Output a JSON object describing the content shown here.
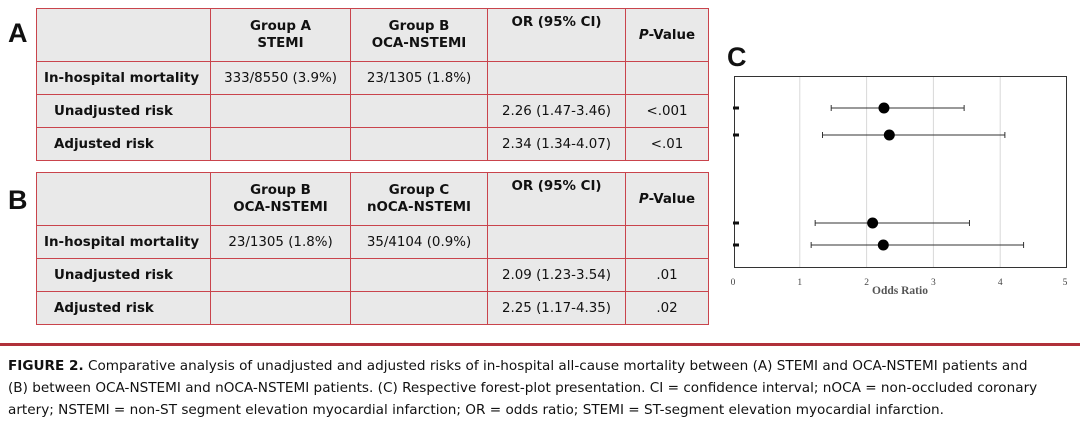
{
  "panels": {
    "a": "A",
    "b": "B",
    "c": "C"
  },
  "table_a": {
    "headers": {
      "group1_line1": "Group A",
      "group1_line2": "STEMI",
      "group2_line1": "Group B",
      "group2_line2": "OCA-NSTEMI",
      "or": "OR (95% CI)",
      "p_italic": "P",
      "p_rest": "-Value"
    },
    "rows": [
      {
        "label": "In-hospital mortality",
        "g1": "333/8550 (3.9%)",
        "g2": "23/1305 (1.8%)",
        "or": "",
        "p": ""
      },
      {
        "label": "Unadjusted risk",
        "g1": "",
        "g2": "",
        "or": "2.26 (1.47-3.46)",
        "p": "<.001"
      },
      {
        "label": "Adjusted risk",
        "g1": "",
        "g2": "",
        "or": "2.34 (1.34-4.07)",
        "p": "<.01"
      }
    ]
  },
  "table_b": {
    "headers": {
      "group1_line1": "Group B",
      "group1_line2": "OCA-NSTEMI",
      "group2_line1": "Group C",
      "group2_line2": "nOCA-NSTEMI",
      "or": "OR (95% CI)",
      "p_italic": "P",
      "p_rest": "-Value"
    },
    "rows": [
      {
        "label": "In-hospital mortality",
        "g1": "23/1305 (1.8%)",
        "g2": "35/4104 (0.9%)",
        "or": "",
        "p": ""
      },
      {
        "label": "Unadjusted risk",
        "g1": "",
        "g2": "",
        "or": "2.09 (1.23-3.54)",
        "p": ".01"
      },
      {
        "label": "Adjusted risk",
        "g1": "",
        "g2": "",
        "or": "2.25 (1.17-4.35)",
        "p": ".02"
      }
    ]
  },
  "chart_data": {
    "type": "scatter",
    "xlabel": "Odds Ratio",
    "xlim": [
      0,
      5
    ],
    "xticks": [
      "0",
      "1",
      "2",
      "3",
      "4",
      "5"
    ],
    "grid": true,
    "series": [
      {
        "or": 2.26,
        "lo": 1.47,
        "hi": 3.46
      },
      {
        "or": 2.34,
        "lo": 1.34,
        "hi": 4.07
      },
      {
        "or": 2.09,
        "lo": 1.23,
        "hi": 3.54
      },
      {
        "or": 2.25,
        "lo": 1.17,
        "hi": 4.35
      }
    ]
  },
  "caption": {
    "figure_label": "FIGURE 2.",
    "line1": "Comparative analysis of unadjusted and adjusted risks of in-hospital all-cause mortality between (A) STEMI and OCA-NSTEMI patients and",
    "line2": "(B) between OCA-NSTEMI and nOCA-NSTEMI patients. (C) Respective forest-plot presentation. CI = confidence interval; nOCA = non-occluded coronary",
    "line3": "artery; NSTEMI = non-ST segment elevation myocardial infarction; OR = odds ratio; STEMI = ST-segment elevation myocardial infarction."
  },
  "colors": {
    "table_border": "#c9444c",
    "table_fill": "#e9e9e9",
    "rule": "#b0313a"
  }
}
